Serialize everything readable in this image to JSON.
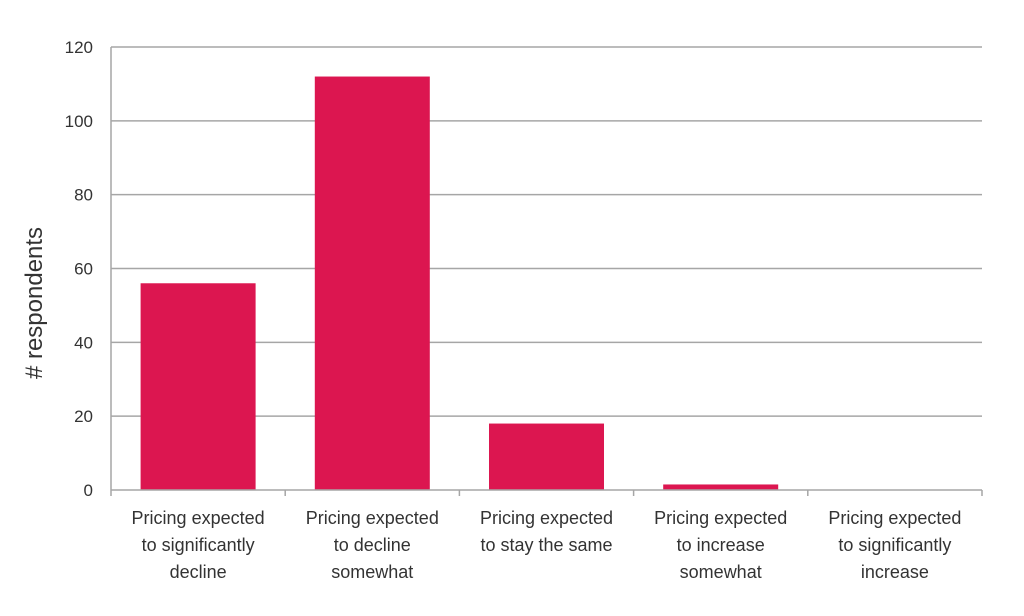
{
  "chart_data": {
    "type": "bar",
    "categories": [
      [
        "Pricing expected",
        "to significantly",
        "decline"
      ],
      [
        "Pricing expected",
        "to decline",
        "somewhat"
      ],
      [
        "Pricing expected",
        "to stay the same"
      ],
      [
        "Pricing expected",
        "to increase",
        "somewhat"
      ],
      [
        "Pricing expected",
        "to significantly",
        "increase"
      ]
    ],
    "values": [
      56,
      112,
      18,
      1.5,
      0
    ],
    "ylabel": "# respondents",
    "ylim": [
      0,
      120
    ],
    "yticks": [
      0,
      20,
      40,
      60,
      80,
      100,
      120
    ],
    "grid": true,
    "bar_color": "#dc1650",
    "grid_color": "#a6a6a6"
  }
}
